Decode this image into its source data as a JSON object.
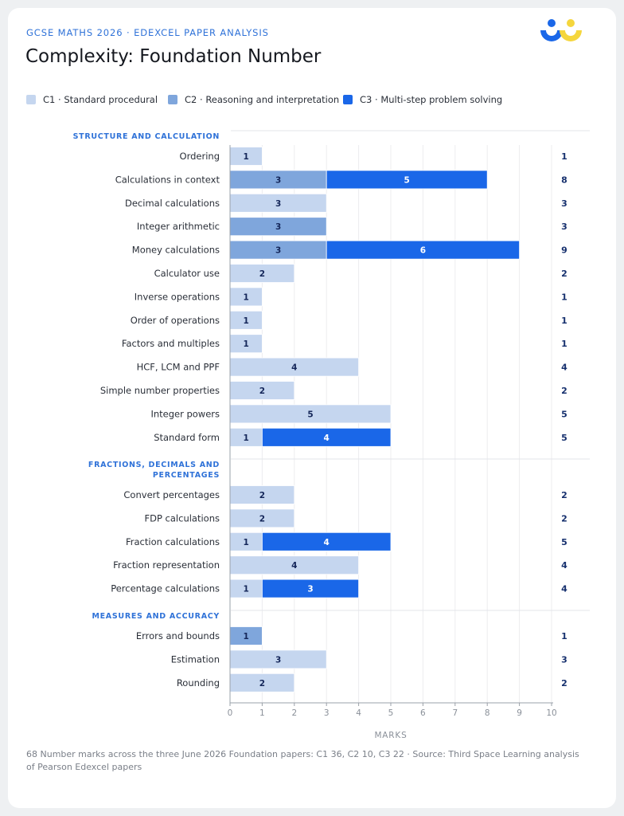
{
  "header": {
    "kicker": "GCSE MATHS 2026 · EDEXCEL PAPER ANALYSIS",
    "title": "Complexity: Foundation Number"
  },
  "logo": {
    "icon": "third-space-learning-logo",
    "colors": [
      "#1a67e8",
      "#f5d63d"
    ]
  },
  "legend": [
    {
      "key": "C1",
      "label": "C1 · Standard procedural",
      "color": "#c5d6ef"
    },
    {
      "key": "C2",
      "label": "C2 · Reasoning and interpretation",
      "color": "#7fa6dc"
    },
    {
      "key": "C3",
      "label": "C3 · Multi-step problem solving",
      "color": "#1a67e8"
    }
  ],
  "chart_data": {
    "type": "bar",
    "orientation": "horizontal",
    "stacked": true,
    "series": [
      {
        "name": "C1 · Standard procedural",
        "key": "C1",
        "color": "#c5d6ef"
      },
      {
        "name": "C2 · Reasoning and interpretation",
        "key": "C2",
        "color": "#7fa6dc"
      },
      {
        "name": "C3 · Multi-step problem solving",
        "key": "C3",
        "color": "#1a67e8"
      }
    ],
    "groups": [
      {
        "label": "STRUCTURE AND CALCULATION",
        "rows": [
          {
            "label": "Ordering",
            "values": {
              "C1": 1,
              "C2": 0,
              "C3": 0
            },
            "total": 1
          },
          {
            "label": "Calculations in context",
            "values": {
              "C1": 0,
              "C2": 3,
              "C3": 5
            },
            "total": 8
          },
          {
            "label": "Decimal calculations",
            "values": {
              "C1": 3,
              "C2": 0,
              "C3": 0
            },
            "total": 3
          },
          {
            "label": "Integer arithmetic",
            "values": {
              "C1": 0,
              "C2": 3,
              "C3": 0
            },
            "total": 3
          },
          {
            "label": "Money calculations",
            "values": {
              "C1": 0,
              "C2": 3,
              "C3": 6
            },
            "total": 9
          },
          {
            "label": "Calculator use",
            "values": {
              "C1": 2,
              "C2": 0,
              "C3": 0
            },
            "total": 2
          },
          {
            "label": "Inverse operations",
            "values": {
              "C1": 1,
              "C2": 0,
              "C3": 0
            },
            "total": 1
          },
          {
            "label": "Order of operations",
            "values": {
              "C1": 1,
              "C2": 0,
              "C3": 0
            },
            "total": 1
          },
          {
            "label": "Factors and multiples",
            "values": {
              "C1": 1,
              "C2": 0,
              "C3": 0
            },
            "total": 1
          },
          {
            "label": "HCF, LCM and PPF",
            "values": {
              "C1": 4,
              "C2": 0,
              "C3": 0
            },
            "total": 4
          },
          {
            "label": "Simple number properties",
            "values": {
              "C1": 2,
              "C2": 0,
              "C3": 0
            },
            "total": 2
          },
          {
            "label": "Integer powers",
            "values": {
              "C1": 5,
              "C2": 0,
              "C3": 0
            },
            "total": 5
          },
          {
            "label": "Standard form",
            "values": {
              "C1": 1,
              "C2": 0,
              "C3": 4
            },
            "total": 5
          }
        ]
      },
      {
        "label": "FRACTIONS, DECIMALS AND PERCENTAGES",
        "label_lines": [
          "FRACTIONS, DECIMALS AND",
          "PERCENTAGES"
        ],
        "rows": [
          {
            "label": "Convert percentages",
            "values": {
              "C1": 2,
              "C2": 0,
              "C3": 0
            },
            "total": 2
          },
          {
            "label": "FDP calculations",
            "values": {
              "C1": 2,
              "C2": 0,
              "C3": 0
            },
            "total": 2
          },
          {
            "label": "Fraction calculations",
            "values": {
              "C1": 1,
              "C2": 0,
              "C3": 4
            },
            "total": 5
          },
          {
            "label": "Fraction representation",
            "values": {
              "C1": 4,
              "C2": 0,
              "C3": 0
            },
            "total": 4
          },
          {
            "label": "Percentage calculations",
            "values": {
              "C1": 1,
              "C2": 0,
              "C3": 3
            },
            "total": 4
          }
        ]
      },
      {
        "label": "MEASURES AND ACCURACY",
        "rows": [
          {
            "label": "Errors and bounds",
            "values": {
              "C1": 0,
              "C2": 1,
              "C3": 0
            },
            "total": 1
          },
          {
            "label": "Estimation",
            "values": {
              "C1": 3,
              "C2": 0,
              "C3": 0
            },
            "total": 3
          },
          {
            "label": "Rounding",
            "values": {
              "C1": 2,
              "C2": 0,
              "C3": 0
            },
            "total": 2
          }
        ]
      }
    ],
    "xlabel": "MARKS",
    "xlim": [
      0,
      10
    ],
    "xticks": [
      0,
      1,
      2,
      3,
      4,
      5,
      6,
      7,
      8,
      9,
      10
    ],
    "grid": true,
    "legend_position": "top-left"
  },
  "footnote": "68 Number marks across the three June 2026 Foundation papers: C1 36, C2 10, C3 22 · Source: Third Space Learning analysis of Pearson Edexcel papers"
}
